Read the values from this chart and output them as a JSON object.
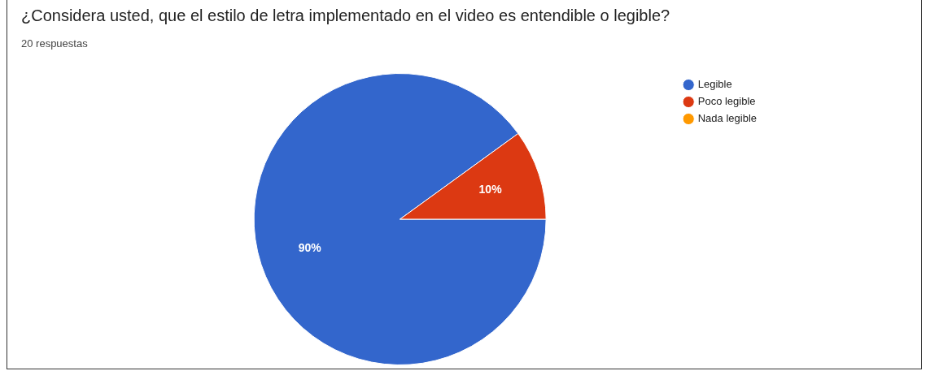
{
  "chart_data": {
    "type": "pie",
    "title": "¿Considera usted, que el estilo de letra implementado en el video es entendible o legible?",
    "subtitle": "20 respuestas",
    "categories": [
      "Legible",
      "Poco legible",
      "Nada legible"
    ],
    "values": [
      90,
      10,
      0
    ],
    "colors": [
      "#3366cc",
      "#dc3912",
      "#ff9900"
    ],
    "value_labels": [
      "90%",
      "10%",
      null
    ],
    "legend": "top right"
  }
}
